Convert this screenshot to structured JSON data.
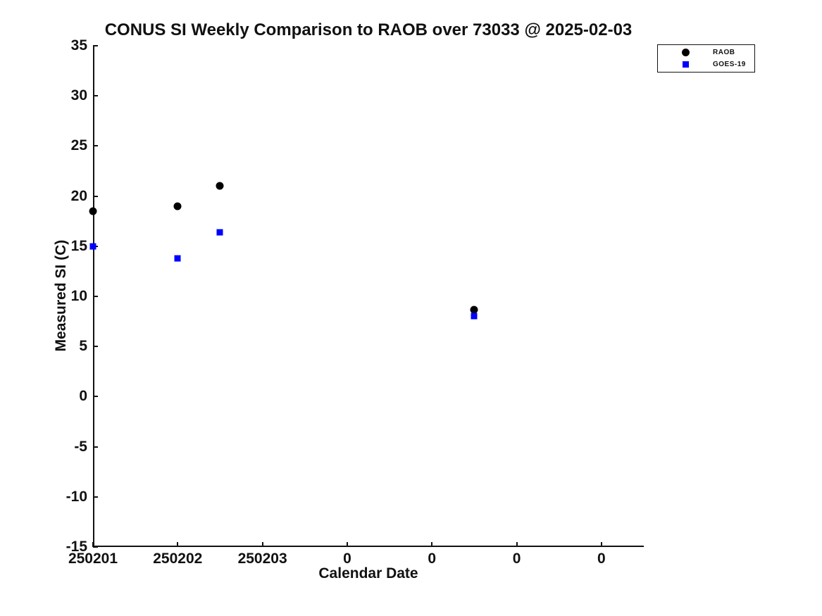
{
  "chart_data": {
    "type": "scatter",
    "title": "CONUS SI Weekly Comparison to RAOB over 73033 @ 2025-02-03",
    "xlabel": "Calendar Date",
    "ylabel": "Measured SI (C)",
    "xticklabels": [
      "250201",
      "250202",
      "250203",
      "0",
      "0",
      "0",
      "0"
    ],
    "yticks": [
      35,
      30,
      25,
      20,
      15,
      10,
      5,
      0,
      -5,
      -10,
      -15
    ],
    "ylim": [
      -15,
      35
    ],
    "xlim_tick_units": [
      0,
      6.5
    ],
    "grid": false,
    "legend_position": "top-right",
    "axis_color": "#111111",
    "series": [
      {
        "name": "RAOB",
        "marker": "circle",
        "color": "#000000",
        "points": [
          {
            "x": 0,
            "y": 18.5
          },
          {
            "x": 1,
            "y": 19.0
          },
          {
            "x": 1.5,
            "y": 21.0
          },
          {
            "x": 4.5,
            "y": 8.7
          }
        ]
      },
      {
        "name": "GOES-19",
        "marker": "square",
        "color": "#0000ff",
        "points": [
          {
            "x": 0,
            "y": 15.0
          },
          {
            "x": 1,
            "y": 13.8
          },
          {
            "x": 1.5,
            "y": 16.4
          },
          {
            "x": 4.5,
            "y": 8.0
          }
        ]
      }
    ]
  }
}
